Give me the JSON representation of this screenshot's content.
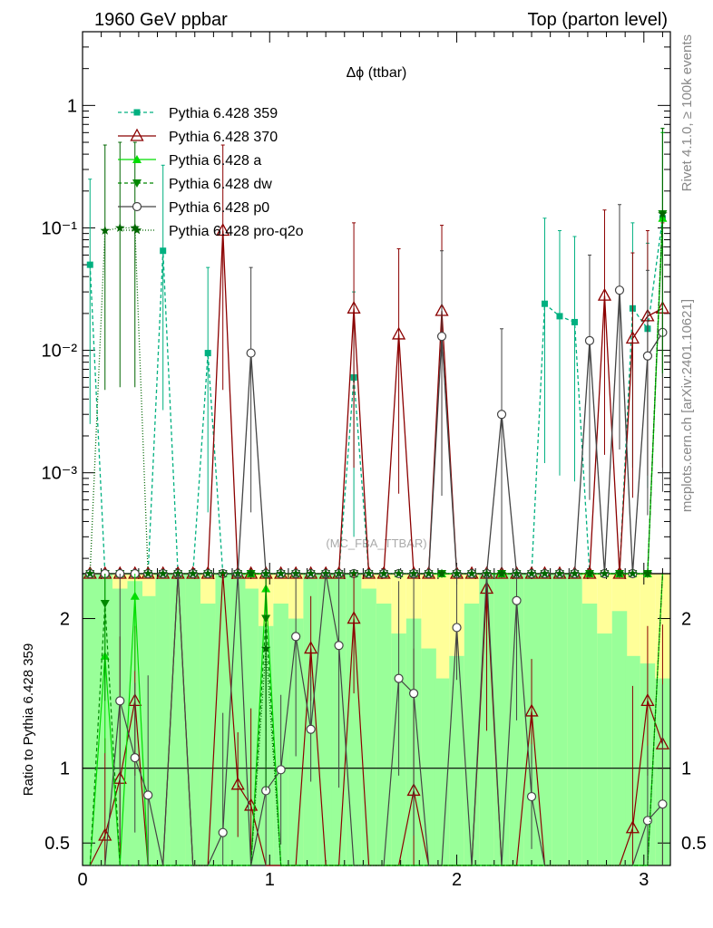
{
  "header": {
    "left": "1960 GeV ppbar",
    "right": "Top (parton level)"
  },
  "side": {
    "rivet": "Rivet 4.1.0, ≥ 100k events",
    "mcplots": "mcplots.cern.ch [arXiv:2401.10621]"
  },
  "chart_data": {
    "type": "line",
    "title": "Δϕ (ttbar)",
    "watermark": "(MC_FBA_TTBAR)",
    "ratio_ylabel": "Ratio to Pythia 6.428 359",
    "xlim": [
      0,
      3.1416
    ],
    "x_ticks": [
      "0",
      "1",
      "2",
      "3"
    ],
    "main": {
      "yscale": "log",
      "ylim": [
        0.00015,
        4.0
      ],
      "y_ticks": [
        {
          "value": 1,
          "label": "1"
        },
        {
          "value": 0.1,
          "label": "10⁻¹"
        },
        {
          "value": 0.01,
          "label": "10⁻²"
        },
        {
          "value": 0.001,
          "label": "10⁻³"
        }
      ]
    },
    "ratio": {
      "ylim": [
        0.35,
        2.3
      ],
      "y_ticks": [
        "0.5",
        "1",
        "2"
      ]
    },
    "x": [
      0.04,
      0.12,
      0.2,
      0.28,
      0.35,
      0.43,
      0.51,
      0.59,
      0.67,
      0.75,
      0.83,
      0.9,
      0.98,
      1.06,
      1.14,
      1.22,
      1.3,
      1.37,
      1.45,
      1.53,
      1.61,
      1.69,
      1.77,
      1.85,
      1.92,
      2.0,
      2.08,
      2.16,
      2.24,
      2.32,
      2.4,
      2.47,
      2.55,
      2.63,
      2.71,
      2.79,
      2.87,
      2.94,
      3.02,
      3.1
    ],
    "band_outer": [
      [
        0.3,
        2.3
      ],
      [
        0.3,
        2.3
      ],
      [
        0.3,
        2.3
      ],
      [
        0.3,
        2.3
      ],
      [
        0.3,
        2.3
      ],
      [
        0.3,
        2.3
      ],
      [
        0.3,
        2.3
      ],
      [
        0.3,
        2.3
      ],
      [
        0.3,
        2.3
      ],
      [
        0.3,
        2.3
      ],
      [
        0.3,
        2.3
      ],
      [
        0.3,
        2.3
      ],
      [
        0.3,
        2.3
      ],
      [
        0.3,
        2.3
      ],
      [
        0.3,
        2.3
      ],
      [
        0.3,
        2.3
      ],
      [
        0.3,
        2.3
      ],
      [
        0.3,
        2.3
      ],
      [
        0.3,
        2.3
      ],
      [
        0.3,
        2.3
      ],
      [
        0.3,
        2.3
      ],
      [
        0.3,
        2.3
      ],
      [
        0.3,
        2.3
      ],
      [
        0.3,
        2.3
      ],
      [
        0.3,
        2.3
      ],
      [
        0.3,
        2.3
      ],
      [
        0.3,
        2.3
      ],
      [
        0.3,
        2.3
      ],
      [
        0.3,
        2.3
      ],
      [
        0.3,
        2.3
      ],
      [
        0.3,
        2.3
      ],
      [
        0.3,
        2.3
      ],
      [
        0.3,
        2.3
      ],
      [
        0.3,
        2.3
      ],
      [
        0.3,
        2.3
      ],
      [
        0.3,
        2.3
      ],
      [
        0.3,
        2.3
      ],
      [
        0.3,
        2.3
      ],
      [
        0.3,
        2.3
      ],
      [
        0.3,
        2.3
      ]
    ],
    "band_inner": [
      [
        0.3,
        2.3
      ],
      [
        0.3,
        2.3
      ],
      [
        0.3,
        2.2
      ],
      [
        0.3,
        2.25
      ],
      [
        0.3,
        2.15
      ],
      [
        0.3,
        2.3
      ],
      [
        0.3,
        2.3
      ],
      [
        0.3,
        2.3
      ],
      [
        0.3,
        2.1
      ],
      [
        0.3,
        2.3
      ],
      [
        0.3,
        2.3
      ],
      [
        0.3,
        2.2
      ],
      [
        0.3,
        1.95
      ],
      [
        0.3,
        2.1
      ],
      [
        0.3,
        2.0
      ],
      [
        0.3,
        2.3
      ],
      [
        0.3,
        2.3
      ],
      [
        0.3,
        2.3
      ],
      [
        0.3,
        2.3
      ],
      [
        0.3,
        2.2
      ],
      [
        0.3,
        2.1
      ],
      [
        0.3,
        1.9
      ],
      [
        0.3,
        2.0
      ],
      [
        0.3,
        1.8
      ],
      [
        0.3,
        1.6
      ],
      [
        0.3,
        1.75
      ],
      [
        0.3,
        2.1
      ],
      [
        0.3,
        2.3
      ],
      [
        0.3,
        2.3
      ],
      [
        0.3,
        2.3
      ],
      [
        0.3,
        2.3
      ],
      [
        0.3,
        2.3
      ],
      [
        0.3,
        2.3
      ],
      [
        0.3,
        2.3
      ],
      [
        0.3,
        2.1
      ],
      [
        0.3,
        1.9
      ],
      [
        0.3,
        2.05
      ],
      [
        0.3,
        1.75
      ],
      [
        0.3,
        1.7
      ],
      [
        0.3,
        1.6
      ]
    ],
    "series": [
      {
        "name": "Pythia 6.428 359",
        "color": "#00b080",
        "marker": "square",
        "dash": "4,3",
        "values": [
          0.05,
          0.0001,
          0.0001,
          0.0001,
          0.0001,
          0.065,
          0.0001,
          0.0001,
          0.0095,
          0.0001,
          0.0001,
          0.0001,
          0.0001,
          0.0001,
          0.0001,
          0.0001,
          0.0001,
          0.0001,
          0.006,
          0.0001,
          0.0001,
          0.0001,
          0.0001,
          0.0001,
          0.0001,
          0.0001,
          0.0001,
          0.0001,
          0.0001,
          0.0001,
          0.0001,
          0.024,
          0.019,
          0.017,
          0.0001,
          0.0001,
          0.0001,
          0.022,
          0.015,
          0.12
        ],
        "ratio": null
      },
      {
        "name": "Pythia 6.428 370",
        "color": "#8b0000",
        "marker": "triangle-open",
        "dash": "",
        "values": [
          0.0001,
          0.0001,
          0.0001,
          0.0001,
          0.0001,
          0.0001,
          0.0001,
          0.0001,
          0.0001,
          0.095,
          0.0001,
          0.0001,
          0.0001,
          0.0001,
          0.0001,
          0.0001,
          0.0001,
          0.0001,
          0.022,
          0.0001,
          0.0001,
          0.0135,
          0.0001,
          0.0001,
          0.021,
          0.0001,
          0.0001,
          0.0001,
          0.0001,
          0.0001,
          0.0001,
          0.0001,
          0.0001,
          0.0001,
          0.0001,
          0.028,
          0.0001,
          0.0125,
          0.019,
          0.022
        ],
        "ratio": [
          0.1,
          0.55,
          0.93,
          1.45,
          0.1,
          0.1,
          3.0,
          0.1,
          0.1,
          3.0,
          0.89,
          0.75,
          0.1,
          0.1,
          0.1,
          1.8,
          0.1,
          0.1,
          2.0,
          0.1,
          0.1,
          0.1,
          0.85,
          0.1,
          0.1,
          0.1,
          0.1,
          2.2,
          0.1,
          0.1,
          1.38,
          0.1,
          0.1,
          0.1,
          0.1,
          0.1,
          0.1,
          0.6,
          1.45,
          1.16
        ]
      },
      {
        "name": "Pythia 6.428 a",
        "color": "#00dd00",
        "marker": "triangle",
        "dash": "",
        "values": [
          0.0001,
          0.0001,
          0.0001,
          0.0001,
          0.0001,
          0.0001,
          0.0001,
          0.0001,
          0.0001,
          0.0001,
          0.0001,
          0.0001,
          0.0001,
          0.0001,
          0.0001,
          0.0001,
          0.0001,
          0.0001,
          0.0001,
          0.0001,
          0.0001,
          0.0001,
          0.0001,
          0.0001,
          0.0001,
          0.0001,
          0.0001,
          0.0001,
          0.0001,
          0.0001,
          0.0001,
          0.0001,
          0.0001,
          0.0001,
          0.0001,
          0.0001,
          0.0001,
          0.0001,
          0.0001,
          0.12
        ],
        "ratio": [
          0.1,
          1.75,
          0.1,
          2.15,
          0.1,
          0.1,
          0.1,
          0.1,
          0.1,
          0.1,
          0.1,
          0.1,
          2.2,
          0.1,
          0.1,
          0.1,
          0.1,
          0.1,
          0.1,
          0.1,
          0.1,
          0.1,
          0.1,
          0.1,
          0.1,
          0.1,
          0.1,
          0.1,
          0.1,
          0.1,
          0.1,
          0.1,
          0.1,
          0.1,
          0.1,
          0.1,
          0.1,
          0.1,
          0.1,
          3.0
        ]
      },
      {
        "name": "Pythia 6.428 dw",
        "color": "#008800",
        "marker": "triangle-down",
        "dash": "4,3",
        "values": [
          0.0001,
          0.0001,
          0.0001,
          0.0001,
          0.0001,
          0.0001,
          0.0001,
          0.0001,
          0.0001,
          0.0001,
          0.0001,
          0.0001,
          0.0001,
          0.0001,
          0.0001,
          0.0001,
          0.0001,
          0.0001,
          0.0001,
          0.0001,
          0.0001,
          0.0001,
          0.0001,
          0.0001,
          0.0001,
          0.0001,
          0.0001,
          0.0001,
          0.0001,
          0.0001,
          0.0001,
          0.0001,
          0.0001,
          0.0001,
          0.0001,
          0.0001,
          0.0001,
          0.0001,
          0.0001,
          0.13
        ],
        "ratio": [
          0.1,
          2.1,
          0.1,
          0.1,
          0.1,
          0.1,
          0.1,
          0.1,
          0.1,
          0.1,
          0.1,
          0.1,
          2.0,
          0.1,
          0.1,
          0.1,
          0.1,
          0.1,
          0.1,
          0.1,
          0.1,
          0.1,
          0.1,
          0.1,
          0.1,
          0.1,
          0.1,
          0.1,
          0.1,
          0.1,
          0.1,
          0.1,
          0.1,
          0.1,
          0.1,
          0.1,
          0.1,
          0.1,
          0.1,
          3.0
        ]
      },
      {
        "name": "Pythia 6.428 p0",
        "color": "#444444",
        "marker": "circle-open",
        "dash": "",
        "values": [
          0.0001,
          0.0001,
          0.0001,
          0.0001,
          0.0001,
          0.0001,
          0.0001,
          0.0001,
          0.0001,
          0.0001,
          0.0001,
          0.0095,
          0.0001,
          0.0001,
          0.0001,
          0.0001,
          0.0001,
          0.0001,
          0.0001,
          0.0001,
          0.0001,
          0.0001,
          0.0001,
          0.0001,
          0.013,
          0.0001,
          0.0001,
          0.0001,
          0.003,
          0.0001,
          0.0001,
          0.0001,
          0.0001,
          0.0001,
          0.012,
          0.0001,
          0.031,
          0.0001,
          0.009,
          0.014
        ],
        "ratio": [
          0.1,
          0.1,
          1.45,
          1.07,
          0.82,
          0.1,
          3.0,
          0.1,
          0.1,
          0.57,
          3.0,
          0.1,
          0.85,
          0.99,
          1.88,
          1.26,
          3.0,
          1.82,
          0.1,
          0.1,
          0.1,
          1.6,
          1.5,
          0.1,
          0.1,
          1.94,
          0.1,
          3.0,
          0.1,
          2.12,
          0.81,
          0.1,
          0.1,
          0.1,
          0.1,
          0.1,
          0.1,
          0.1,
          0.65,
          0.76
        ]
      },
      {
        "name": "Pythia 6.428 pro-q2o",
        "color": "#006600",
        "marker": "star",
        "dash": "1,2",
        "values": [
          0.0001,
          0.095,
          0.1,
          0.1,
          0.0001,
          0.0001,
          0.0001,
          0.0001,
          0.0001,
          0.0001,
          0.0001,
          0.0001,
          0.0001,
          0.0001,
          0.0001,
          0.0001,
          0.0001,
          0.0001,
          0.0001,
          0.0001,
          0.0001,
          0.0001,
          0.0001,
          0.0001,
          0.0001,
          0.0001,
          0.0001,
          0.0001,
          0.0001,
          0.0001,
          0.0001,
          0.0001,
          0.0001,
          0.0001,
          0.0001,
          0.0001,
          0.0001,
          0.0001,
          0.0001,
          0.13
        ],
        "ratio": [
          0.1,
          0.1,
          0.1,
          0.1,
          0.1,
          0.1,
          0.1,
          0.1,
          0.1,
          0.1,
          0.1,
          0.1,
          1.8,
          0.1,
          0.1,
          0.1,
          0.1,
          0.1,
          0.1,
          0.1,
          0.1,
          0.1,
          0.1,
          0.1,
          0.1,
          0.1,
          0.1,
          0.1,
          0.1,
          0.1,
          0.1,
          0.1,
          0.1,
          0.1,
          0.1,
          0.1,
          0.1,
          0.1,
          0.1,
          3.0
        ]
      }
    ]
  }
}
